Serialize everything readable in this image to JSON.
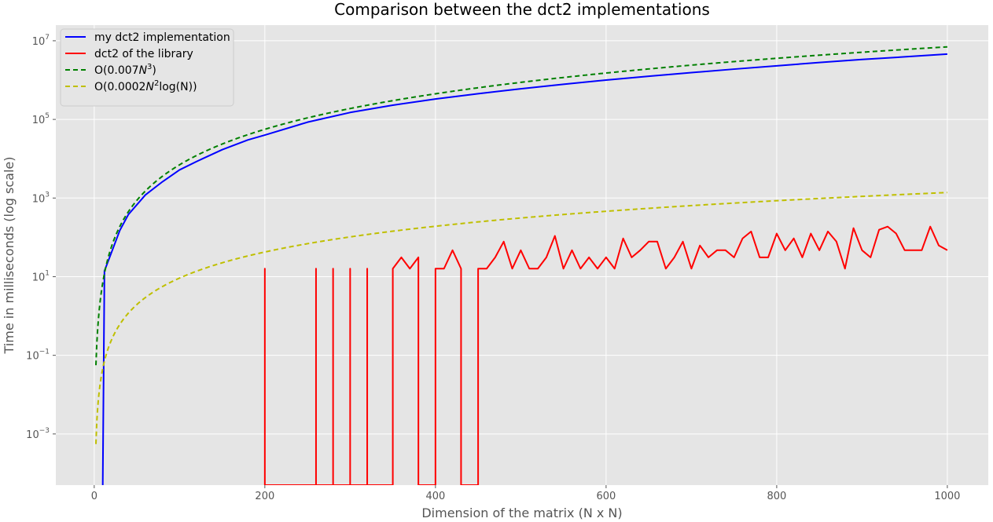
{
  "chart_data": {
    "type": "line",
    "title": "Comparison between the dct2 implementations",
    "xlabel": "Dimension of the matrix (N x N)",
    "ylabel": "Time in milliseconds (log scale)",
    "y_scale": "log",
    "xlim": [
      -45,
      1048
    ],
    "ylim": [
      5e-05,
      25000000
    ],
    "x_ticks": [
      0,
      200,
      400,
      600,
      800,
      1000
    ],
    "y_ticks": [
      {
        "value": 0.001,
        "base": "10",
        "exp": "−3"
      },
      {
        "value": 0.1,
        "base": "10",
        "exp": "−1"
      },
      {
        "value": 10,
        "base": "10",
        "exp": "1"
      },
      {
        "value": 1000,
        "base": "10",
        "exp": "3"
      },
      {
        "value": 100000,
        "base": "10",
        "exp": "5"
      },
      {
        "value": 10000000,
        "base": "10",
        "exp": "7"
      }
    ],
    "grid": true,
    "legend_position": "top-left",
    "background": "#e5e5e5",
    "series": [
      {
        "name": "my dct2 implementation",
        "legend": {
          "text": "my dct2 implementation"
        },
        "color": "#0000ff",
        "dash": "solid",
        "x": [
          10,
          12,
          20,
          30,
          40,
          60,
          80,
          100,
          120,
          150,
          180,
          200,
          250,
          300,
          350,
          400,
          450,
          500,
          550,
          600,
          650,
          700,
          750,
          800,
          850,
          900,
          950,
          1000
        ],
        "y": [
          5e-05,
          14,
          40,
          150,
          380,
          1200,
          2600,
          5200,
          8500,
          17000,
          30000,
          40000,
          85000,
          150000,
          230000,
          330000,
          450000,
          600000,
          780000,
          1000000,
          1250000,
          1550000,
          1900000,
          2300000,
          2800000,
          3350000,
          3900000,
          4600000
        ]
      },
      {
        "name": "dct2 of the library",
        "legend": {
          "text": "dct2 of the library"
        },
        "color": "#ff0000",
        "dash": "solid",
        "x": [
          200,
          200,
          200,
          260,
          260,
          260,
          280,
          280,
          280,
          300,
          300,
          300,
          320,
          320,
          320,
          350,
          350,
          360,
          370,
          380,
          380,
          400,
          400,
          410,
          420,
          430,
          430,
          450,
          450,
          460,
          470,
          480,
          490,
          500,
          510,
          520,
          530,
          540,
          550,
          560,
          570,
          580,
          590,
          600,
          610,
          620,
          630,
          640,
          650,
          660,
          670,
          680,
          690,
          700,
          710,
          720,
          730,
          740,
          750,
          760,
          770,
          780,
          790,
          800,
          810,
          820,
          830,
          840,
          850,
          860,
          870,
          880,
          890,
          900,
          910,
          920,
          930,
          940,
          950,
          960,
          970,
          980,
          990,
          1000
        ],
        "y": [
          5e-05,
          16,
          5e-05,
          5e-05,
          16,
          5e-05,
          5e-05,
          16,
          5e-05,
          5e-05,
          16,
          5e-05,
          5e-05,
          16,
          5e-05,
          5e-05,
          16,
          31,
          16,
          31,
          5e-05,
          5e-05,
          16,
          16,
          47,
          16,
          5e-05,
          5e-05,
          16,
          16,
          31,
          78,
          16,
          47,
          16,
          16,
          31,
          109,
          16,
          47,
          16,
          31,
          16,
          31,
          16,
          94,
          31,
          47,
          78,
          78,
          16,
          31,
          78,
          16,
          62,
          31,
          47,
          47,
          31,
          94,
          141,
          31,
          31,
          125,
          47,
          94,
          31,
          125,
          47,
          141,
          78,
          16,
          172,
          47,
          31,
          156,
          188,
          125,
          47,
          47,
          47,
          188,
          62,
          47
        ]
      },
      {
        "name": "O(0.007N^3)",
        "legend": {
          "prefix": "O(0.007",
          "base": "N",
          "exp": "3",
          "suffix": ")"
        },
        "color": "#008000",
        "dash": "6,4",
        "formula": {
          "kind": "cubic",
          "coef": 0.007,
          "x_from": 2,
          "x_to": 1000
        }
      },
      {
        "name": "O(0.0002N^2 log(N))",
        "legend": {
          "prefix": "O(0.0002",
          "base": "N",
          "exp": "2",
          "suffix": "log(N))"
        },
        "color": "#bfbf00",
        "dash": "6,4",
        "formula": {
          "kind": "n2logn",
          "coef": 0.0002,
          "x_from": 2,
          "x_to": 1000
        }
      }
    ]
  }
}
